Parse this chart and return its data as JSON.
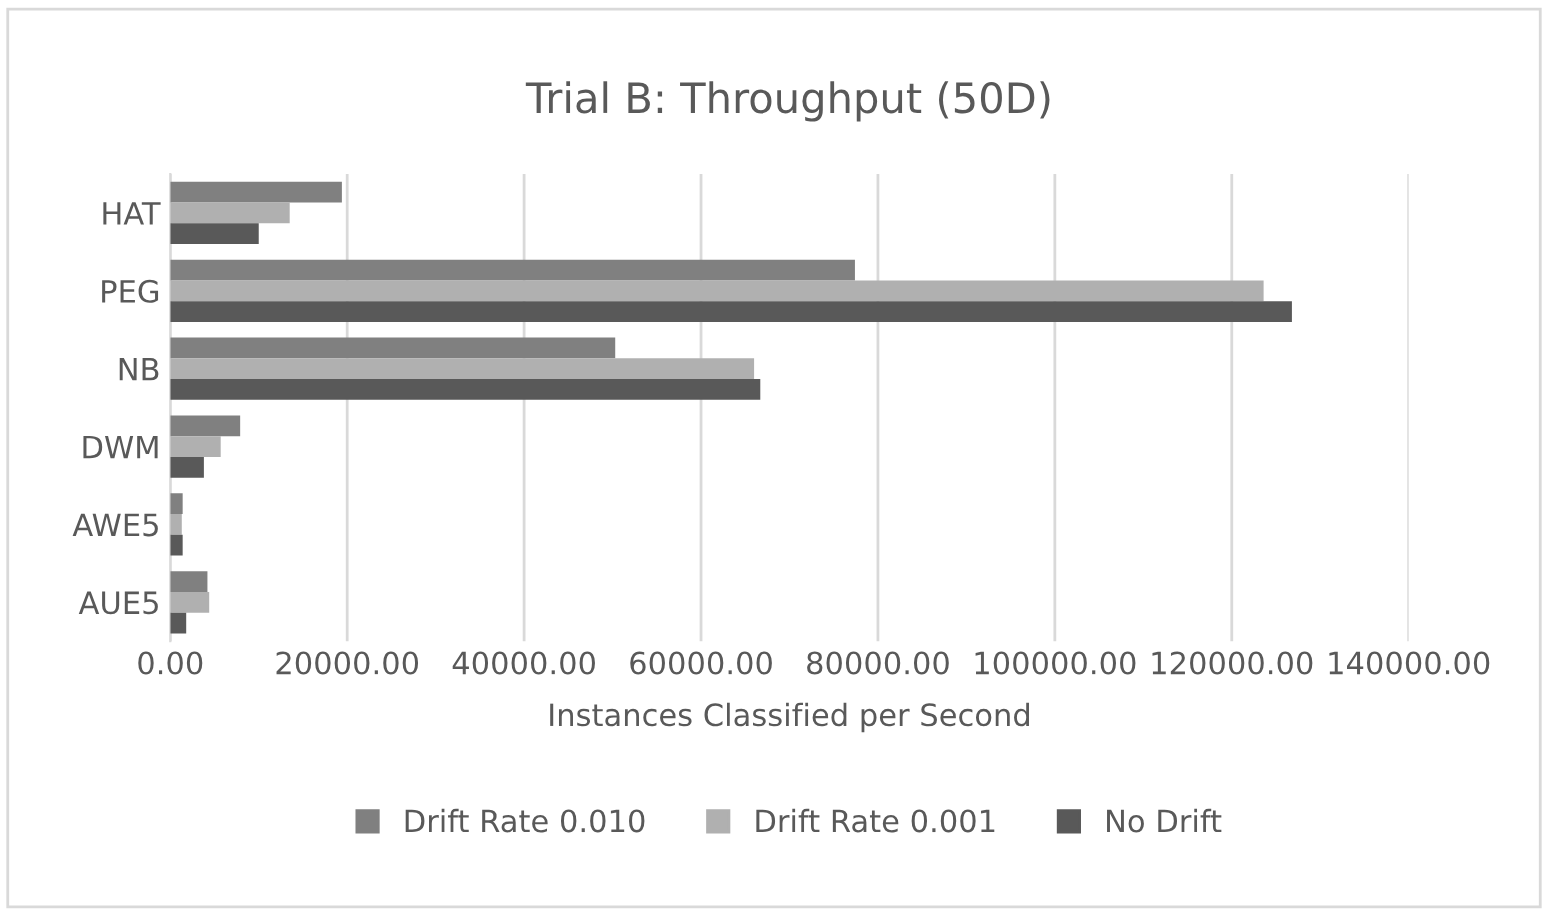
{
  "chart_data": {
    "type": "bar",
    "orientation": "horizontal",
    "title": "Trial B: Throughput (50D)",
    "xlabel": "Instances Classified per Second",
    "categories": [
      "HAT",
      "PEG",
      "NB",
      "DWM",
      "AWE5",
      "AUE5"
    ],
    "series": [
      {
        "name": "Drift Rate 0.010",
        "color": "#808080",
        "values": [
          19400,
          77400,
          50300,
          7900,
          1400,
          4200
        ]
      },
      {
        "name": "Drift Rate 0.001",
        "color": "#b0b0b0",
        "values": [
          13500,
          123600,
          66000,
          5700,
          1300,
          4400
        ]
      },
      {
        "name": "No Drift",
        "color": "#595959",
        "values": [
          10000,
          126800,
          66700,
          3800,
          1400,
          1800
        ]
      }
    ],
    "xlim": [
      0,
      140000
    ],
    "xticks": [
      {
        "value": 0,
        "label": "0.00"
      },
      {
        "value": 20000,
        "label": "20000.00"
      },
      {
        "value": 40000,
        "label": "40000.00"
      },
      {
        "value": 60000,
        "label": "60000.00"
      },
      {
        "value": 80000,
        "label": "80000.00"
      },
      {
        "value": 100000,
        "label": "100000.00"
      },
      {
        "value": 120000,
        "label": "120000.00"
      },
      {
        "value": 140000,
        "label": "140000.00"
      }
    ],
    "grid": "x",
    "legend": "bottom"
  }
}
